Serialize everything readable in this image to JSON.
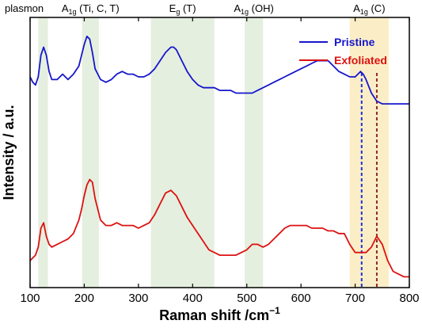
{
  "chart_data": {
    "type": "line",
    "xlabel": "Raman shift /cm",
    "xlabel_superscript": "−1",
    "ylabel": "Intensity / a.u.",
    "xlim": [
      100,
      800
    ],
    "ylim": [
      0,
      1
    ],
    "x_ticks": [
      100,
      200,
      300,
      400,
      500,
      600,
      700,
      800
    ],
    "y_ticks_shown": false,
    "legend_position": "top-right",
    "bands": [
      {
        "label": "plasmon",
        "x0": 115,
        "x1": 133,
        "color": "#e5efdf"
      },
      {
        "label_main": "A",
        "label_sub": "1g",
        "label_rest": " (Ti, C, T)",
        "x0": 196,
        "x1": 227,
        "color": "#e5efdf"
      },
      {
        "label_main": "E",
        "label_sub": "g",
        "label_rest": " (T)",
        "x0": 323,
        "x1": 440,
        "color": "#e5efdf"
      },
      {
        "label_main": "A",
        "label_sub": "1g",
        "label_rest": " (OH)",
        "x0": 496,
        "x1": 530,
        "color": "#e5efdf"
      },
      {
        "label_main": "A",
        "label_sub": "1g",
        "label_rest": " (C)",
        "x0": 690,
        "x1": 762,
        "color": "#fbeec7"
      }
    ],
    "vlines": [
      {
        "x": 712,
        "color": "#1f2fd6",
        "style": "dashed"
      },
      {
        "x": 740,
        "color": "#8a2a2a",
        "style": "dashed"
      }
    ],
    "series": [
      {
        "name": "Pristine",
        "color": "#1616cc",
        "x": [
          100,
          105,
          110,
          115,
          120,
          125,
          130,
          135,
          140,
          145,
          150,
          160,
          170,
          180,
          190,
          195,
          200,
          205,
          210,
          215,
          220,
          230,
          240,
          250,
          260,
          270,
          280,
          290,
          300,
          310,
          320,
          330,
          340,
          350,
          360,
          365,
          370,
          380,
          390,
          400,
          410,
          420,
          430,
          440,
          450,
          460,
          470,
          480,
          490,
          500,
          510,
          520,
          530,
          540,
          550,
          560,
          570,
          580,
          590,
          600,
          610,
          620,
          630,
          640,
          650,
          660,
          670,
          680,
          690,
          700,
          705,
          710,
          715,
          720,
          730,
          740,
          750,
          760,
          770,
          780,
          790,
          800
        ],
        "y": [
          0.78,
          0.76,
          0.75,
          0.78,
          0.86,
          0.89,
          0.86,
          0.8,
          0.77,
          0.77,
          0.77,
          0.79,
          0.77,
          0.79,
          0.82,
          0.86,
          0.9,
          0.93,
          0.92,
          0.87,
          0.81,
          0.77,
          0.76,
          0.77,
          0.79,
          0.8,
          0.79,
          0.79,
          0.78,
          0.78,
          0.79,
          0.81,
          0.84,
          0.87,
          0.89,
          0.89,
          0.88,
          0.84,
          0.8,
          0.77,
          0.75,
          0.74,
          0.74,
          0.74,
          0.73,
          0.73,
          0.73,
          0.72,
          0.72,
          0.72,
          0.72,
          0.73,
          0.74,
          0.75,
          0.76,
          0.77,
          0.78,
          0.79,
          0.8,
          0.81,
          0.82,
          0.83,
          0.84,
          0.84,
          0.84,
          0.82,
          0.8,
          0.79,
          0.78,
          0.78,
          0.79,
          0.8,
          0.79,
          0.77,
          0.72,
          0.69,
          0.68,
          0.68,
          0.68,
          0.68,
          0.68,
          0.68
        ]
      },
      {
        "name": "Exfoliated",
        "color": "#dd1111",
        "x": [
          100,
          105,
          110,
          115,
          120,
          125,
          130,
          135,
          140,
          150,
          160,
          170,
          180,
          190,
          195,
          200,
          205,
          210,
          215,
          220,
          230,
          240,
          250,
          260,
          270,
          280,
          290,
          300,
          310,
          320,
          330,
          340,
          350,
          360,
          370,
          380,
          390,
          400,
          410,
          420,
          430,
          440,
          450,
          460,
          470,
          480,
          490,
          500,
          510,
          520,
          530,
          540,
          550,
          560,
          570,
          580,
          590,
          600,
          610,
          620,
          630,
          640,
          650,
          660,
          670,
          680,
          690,
          700,
          710,
          720,
          730,
          740,
          750,
          760,
          770,
          780,
          790,
          800
        ],
        "y": [
          0.1,
          0.11,
          0.12,
          0.15,
          0.22,
          0.24,
          0.19,
          0.16,
          0.15,
          0.16,
          0.17,
          0.18,
          0.2,
          0.25,
          0.29,
          0.34,
          0.38,
          0.4,
          0.39,
          0.33,
          0.25,
          0.23,
          0.23,
          0.24,
          0.23,
          0.23,
          0.23,
          0.22,
          0.23,
          0.24,
          0.27,
          0.31,
          0.35,
          0.36,
          0.34,
          0.3,
          0.26,
          0.23,
          0.2,
          0.17,
          0.14,
          0.13,
          0.12,
          0.12,
          0.12,
          0.12,
          0.13,
          0.14,
          0.16,
          0.16,
          0.15,
          0.16,
          0.18,
          0.2,
          0.22,
          0.23,
          0.23,
          0.23,
          0.23,
          0.22,
          0.22,
          0.22,
          0.21,
          0.21,
          0.2,
          0.2,
          0.16,
          0.13,
          0.13,
          0.13,
          0.15,
          0.19,
          0.16,
          0.1,
          0.06,
          0.05,
          0.04,
          0.04
        ]
      }
    ]
  }
}
